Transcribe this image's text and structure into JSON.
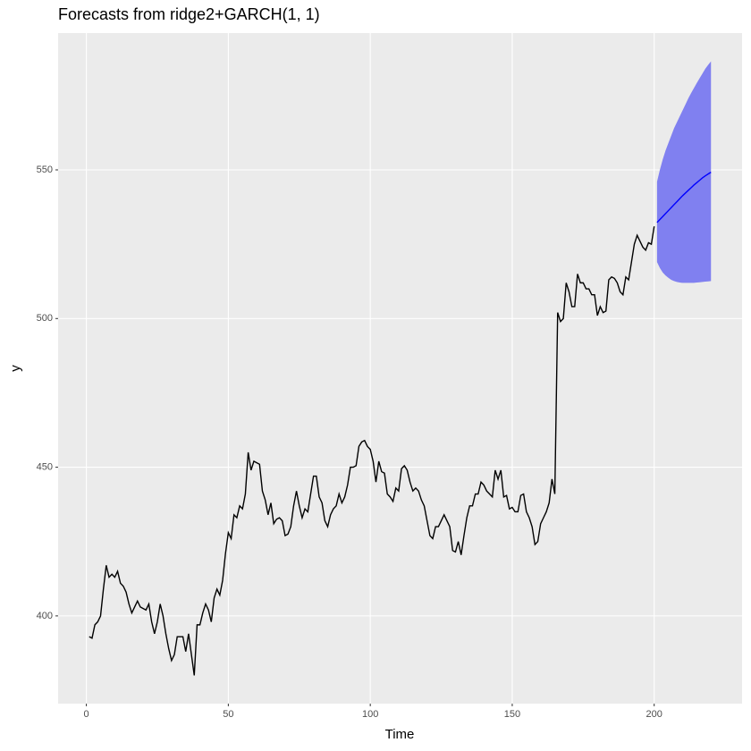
{
  "chart_data": {
    "type": "line",
    "title": "Forecasts from ridge2+GARCH(1, 1)",
    "x_label": "Time",
    "y_label": "y",
    "xlim": [
      -9.95,
      230.95
    ],
    "ylim": [
      370.5,
      596
    ],
    "xticks": [
      0,
      50,
      100,
      150,
      200
    ],
    "yticks": [
      400,
      450,
      500,
      550
    ],
    "grid": true,
    "series": [
      {
        "color": "#000000",
        "x": [
          1,
          2,
          3,
          4,
          5,
          6,
          7,
          8,
          9,
          10,
          11,
          12,
          13,
          14,
          15,
          16,
          17,
          18,
          19,
          20,
          21,
          22,
          23,
          24,
          25,
          26,
          27,
          28,
          29,
          30,
          31,
          32,
          33,
          34,
          35,
          36,
          37,
          38,
          39,
          40,
          41,
          42,
          43,
          44,
          45,
          46,
          47,
          48,
          49,
          50,
          51,
          52,
          53,
          54,
          55,
          56,
          57,
          58,
          59,
          60,
          61,
          62,
          63,
          64,
          65,
          66,
          67,
          68,
          69,
          70,
          71,
          72,
          73,
          74,
          75,
          76,
          77,
          78,
          79,
          80,
          81,
          82,
          83,
          84,
          85,
          86,
          87,
          88,
          89,
          90,
          91,
          92,
          93,
          94,
          95,
          96,
          97,
          98,
          99,
          100,
          101,
          102,
          103,
          104,
          105,
          106,
          107,
          108,
          109,
          110,
          111,
          112,
          113,
          114,
          115,
          116,
          117,
          118,
          119,
          120,
          121,
          122,
          123,
          124,
          125,
          126,
          127,
          128,
          129,
          130,
          131,
          132,
          133,
          134,
          135,
          136,
          137,
          138,
          139,
          140,
          141,
          142,
          143,
          144,
          145,
          146,
          147,
          148,
          149,
          150,
          151,
          152,
          153,
          154,
          155,
          156,
          157,
          158,
          159,
          160,
          161,
          162,
          163,
          164,
          165,
          166,
          167,
          168,
          169,
          170,
          171,
          172,
          173,
          174,
          175,
          176,
          177,
          178,
          179,
          180,
          181,
          182,
          183,
          184,
          185,
          186,
          187,
          188,
          189,
          190,
          191,
          192,
          193,
          194,
          195,
          196,
          197,
          198,
          199,
          200
        ],
        "values": [
          393,
          392.5,
          397,
          398,
          400,
          409,
          417,
          413,
          414,
          413,
          415,
          411,
          410,
          408,
          404,
          401,
          403,
          405,
          403,
          402.5,
          402,
          404,
          398,
          394,
          398,
          404,
          400,
          394,
          389,
          385,
          387,
          393,
          393,
          393,
          388,
          394,
          387,
          380,
          397,
          397,
          401,
          404,
          402,
          398,
          406,
          409,
          407,
          412,
          421,
          428,
          426,
          434,
          433,
          437,
          436,
          441,
          455,
          449,
          452,
          451.5,
          451,
          442,
          439,
          434,
          438,
          431,
          432.5,
          433,
          432,
          427,
          427.5,
          430,
          437,
          442,
          437,
          433,
          436,
          435,
          441,
          447,
          447,
          440,
          438,
          432,
          430,
          434,
          436,
          437,
          441,
          438,
          440,
          444,
          450,
          450,
          450.5,
          457,
          458.5,
          459,
          457,
          456,
          452,
          445,
          452,
          448.5,
          448,
          441,
          440,
          438.5,
          443,
          442,
          449.5,
          450.5,
          449,
          445,
          442,
          443,
          442,
          439,
          437,
          432,
          427,
          426,
          430,
          430,
          432,
          434,
          432,
          430,
          422,
          421.5,
          425,
          420.5,
          427,
          433,
          437,
          437,
          441,
          441,
          445,
          444,
          442,
          441,
          440,
          449,
          446,
          449,
          440,
          440.5,
          436,
          436.5,
          435,
          435,
          440.5,
          441,
          435,
          433,
          430,
          424,
          425,
          431,
          433,
          435,
          438,
          446,
          441,
          502,
          499,
          500,
          512,
          509,
          504,
          504,
          515,
          512,
          512,
          510,
          510,
          508,
          508,
          501,
          504,
          502,
          502.5,
          513,
          514,
          513.5,
          512,
          509,
          508,
          514,
          513,
          519,
          525,
          528,
          526,
          524,
          523,
          525.5,
          525,
          531
        ]
      },
      {
        "color": "#0000ff",
        "x": [
          201,
          202,
          203,
          204,
          205,
          206,
          207,
          208,
          209,
          210,
          211,
          212,
          213,
          214,
          215,
          216,
          217,
          218,
          219,
          220
        ],
        "values": [
          532.3,
          533.3,
          534.3,
          535.3,
          536.3,
          537.3,
          538.3,
          539.3,
          540.3,
          541.3,
          542.2,
          543.1,
          544,
          544.9,
          545.7,
          546.5,
          547.3,
          548,
          548.6,
          549.2
        ]
      }
    ],
    "band": {
      "color": "#8080f0",
      "x": [
        201,
        202,
        203,
        204,
        205,
        206,
        207,
        208,
        209,
        210,
        211,
        212,
        213,
        214,
        215,
        216,
        217,
        218,
        219,
        220
      ],
      "lower": [
        519,
        517,
        515.5,
        514.5,
        513.7,
        513,
        512.6,
        512.3,
        512.1,
        512,
        512,
        512,
        512,
        512,
        512.1,
        512.2,
        512.3,
        512.4,
        512.5,
        512.6
      ],
      "upper": [
        546,
        550,
        553.5,
        556.5,
        559,
        561.5,
        564,
        566,
        568,
        570,
        572,
        574,
        575.8,
        577.5,
        579.2,
        580.8,
        582.4,
        584,
        585.3,
        586.5
      ]
    }
  }
}
